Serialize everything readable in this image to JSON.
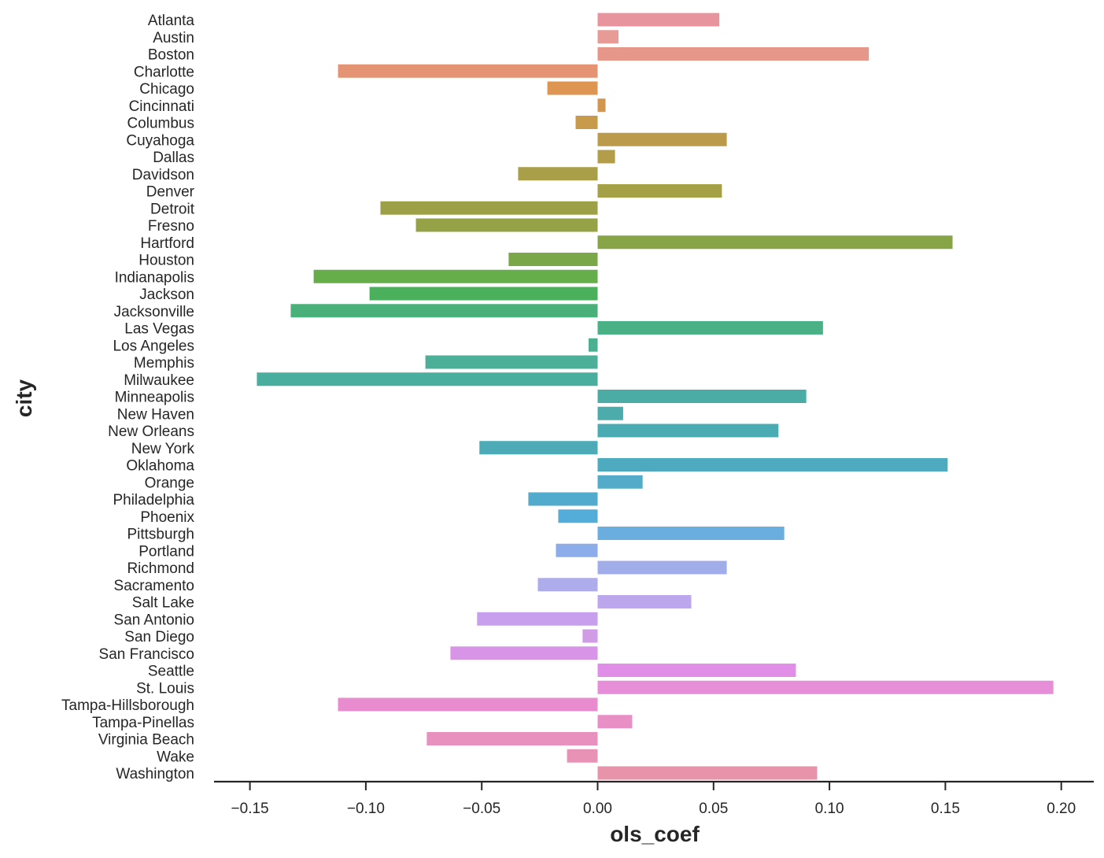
{
  "chart_data": {
    "type": "bar",
    "orientation": "horizontal",
    "title": "",
    "xlabel": "ols_coef",
    "ylabel": "city",
    "xlim": [
      -0.165,
      0.215
    ],
    "xticks": [
      -0.15,
      -0.1,
      -0.05,
      0.0,
      0.05,
      0.1,
      0.15,
      0.2
    ],
    "xtick_labels": [
      "−0.15",
      "−0.10",
      "−0.05",
      "0.00",
      "0.05",
      "0.10",
      "0.15",
      "0.20"
    ],
    "grid": false,
    "legend": "none",
    "categories": [
      "Atlanta",
      "Austin",
      "Boston",
      "Charlotte",
      "Chicago",
      "Cincinnati",
      "Columbus",
      "Cuyahoga",
      "Dallas",
      "Davidson",
      "Denver",
      "Detroit",
      "Fresno",
      "Hartford",
      "Houston",
      "Indianapolis",
      "Jackson",
      "Jacksonville",
      "Las Vegas",
      "Los Angeles",
      "Memphis",
      "Milwaukee",
      "Minneapolis",
      "New Haven",
      "New Orleans",
      "New York",
      "Oklahoma",
      "Orange",
      "Philadelphia",
      "Phoenix",
      "Pittsburgh",
      "Portland",
      "Richmond",
      "Sacramento",
      "Salt Lake",
      "San Antonio",
      "San Diego",
      "San Francisco",
      "Seattle",
      "St. Louis",
      "Tampa-Hillsborough",
      "Tampa-Pinellas",
      "Virginia Beach",
      "Wake",
      "Washington"
    ],
    "values": [
      0.0525,
      0.009,
      0.117,
      -0.112,
      -0.0217,
      0.0034,
      -0.0095,
      0.0557,
      0.0075,
      -0.0343,
      0.0536,
      -0.0937,
      -0.0784,
      0.1531,
      -0.0384,
      -0.1225,
      -0.0984,
      -0.1324,
      0.0972,
      -0.0039,
      -0.0743,
      -0.147,
      0.09,
      0.011,
      0.078,
      -0.051,
      0.151,
      0.0194,
      -0.0299,
      -0.017,
      0.0805,
      -0.018,
      0.0557,
      -0.0258,
      0.0404,
      -0.052,
      -0.0065,
      -0.0635,
      0.0855,
      0.1966,
      -0.112,
      0.0149,
      -0.0737,
      -0.0132,
      0.0947
    ],
    "colors": [
      "#e8949f",
      "#e89a97",
      "#e7978a",
      "#e49472",
      "#de9551",
      "#d3964f",
      "#c89a4c",
      "#bc9a4b",
      "#b39d4a",
      "#a89f48",
      "#a3a046",
      "#9da046",
      "#95a346",
      "#87a547",
      "#7aa748",
      "#65ae49",
      "#4bb05c",
      "#4ab079",
      "#4ab085",
      "#4bb08f",
      "#4bb097",
      "#4aae9f",
      "#4aaca4",
      "#4bacab",
      "#4babb2",
      "#4cabb7",
      "#4daabf",
      "#52abc8",
      "#52abcc",
      "#54acd9",
      "#6aaee0",
      "#8cadea",
      "#a0ade9",
      "#aeaceb",
      "#bca6ec",
      "#c6a0ec",
      "#d09ce6",
      "#d894e6",
      "#e18ee8",
      "#e68ed8",
      "#e88ccf",
      "#e88fc6",
      "#e890be",
      "#e892b5",
      "#e794ab"
    ]
  }
}
